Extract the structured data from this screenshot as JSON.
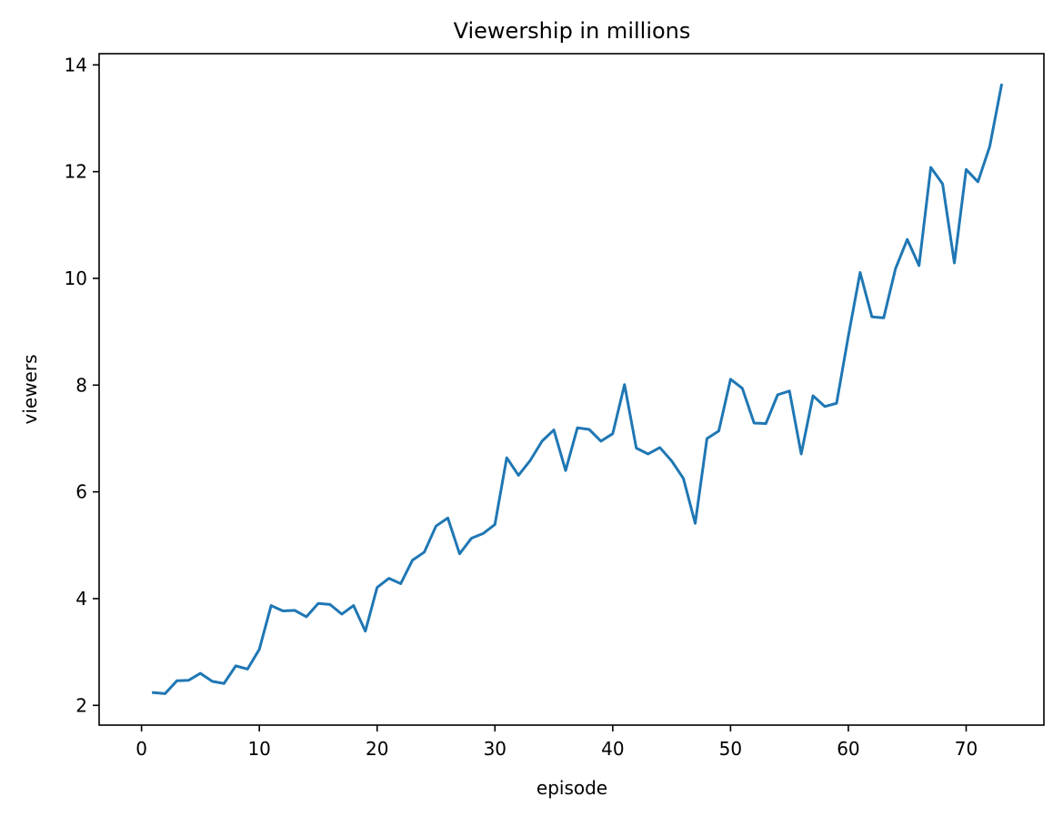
{
  "chart_data": {
    "type": "line",
    "title": "Viewership in millions",
    "xlabel": "episode",
    "ylabel": "viewers",
    "xlim": [
      -3.6,
      76.6
    ],
    "ylim": [
      1.63,
      14.21
    ],
    "xticks": [
      0,
      10,
      20,
      30,
      40,
      50,
      60,
      70
    ],
    "yticks": [
      2,
      4,
      6,
      8,
      10,
      12,
      14
    ],
    "grid": false,
    "series": [
      {
        "color": "#1f77b4",
        "x": [
          1,
          2,
          3,
          4,
          5,
          6,
          7,
          8,
          9,
          10,
          11,
          12,
          13,
          14,
          15,
          16,
          17,
          18,
          19,
          20,
          21,
          22,
          23,
          24,
          25,
          26,
          27,
          28,
          29,
          30,
          31,
          32,
          33,
          34,
          35,
          36,
          37,
          38,
          39,
          40,
          41,
          42,
          43,
          44,
          45,
          46,
          47,
          48,
          49,
          50,
          51,
          52,
          53,
          54,
          55,
          56,
          57,
          58,
          59,
          60,
          61,
          62,
          63,
          64,
          65,
          66,
          67,
          68,
          69,
          70,
          71,
          72,
          73
        ],
        "y": [
          2.24,
          2.22,
          2.46,
          2.47,
          2.6,
          2.45,
          2.41,
          2.74,
          2.68,
          3.05,
          3.87,
          3.77,
          3.78,
          3.66,
          3.91,
          3.89,
          3.71,
          3.87,
          3.39,
          4.21,
          4.38,
          4.28,
          4.72,
          4.87,
          5.36,
          5.51,
          4.84,
          5.13,
          5.22,
          5.39,
          6.64,
          6.31,
          6.59,
          6.95,
          7.16,
          6.4,
          7.2,
          7.17,
          6.95,
          7.09,
          8.01,
          6.82,
          6.71,
          6.83,
          6.58,
          6.25,
          5.41,
          7.0,
          7.14,
          8.11,
          7.94,
          7.29,
          7.28,
          7.82,
          7.89,
          6.71,
          7.8,
          7.6,
          7.66,
          8.92,
          10.11,
          9.28,
          9.26,
          10.18,
          10.73,
          10.24,
          12.08,
          11.77,
          10.29,
          12.04,
          11.81,
          12.47,
          13.62
        ]
      }
    ]
  }
}
